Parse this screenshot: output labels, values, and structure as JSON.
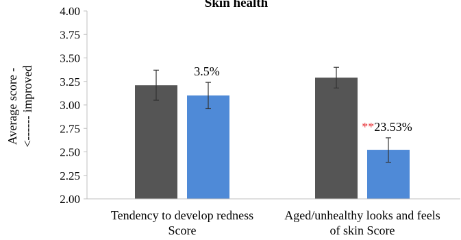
{
  "chart_data": {
    "type": "bar",
    "title": "Skin health",
    "ylabel_lines": [
      "Average score -",
      "<------ improved"
    ],
    "xlabel": "",
    "ylim": [
      2.0,
      4.0
    ],
    "yticks": [
      "2.00",
      "2.25",
      "2.50",
      "2.75",
      "3.00",
      "3.25",
      "3.50",
      "3.75",
      "4.00"
    ],
    "ytick_values": [
      2.0,
      2.25,
      2.5,
      2.75,
      3.0,
      3.25,
      3.5,
      3.75,
      4.0
    ],
    "categories": [
      {
        "lines": [
          "Tendency to develop redness",
          "Score"
        ]
      },
      {
        "lines": [
          "Aged/unhealthy looks and feels",
          "of skin Score"
        ]
      }
    ],
    "series": [
      {
        "color": "#555555",
        "values": [
          3.21,
          3.29
        ],
        "errors": [
          0.16,
          0.11
        ]
      },
      {
        "color": "#4f8ad7",
        "values": [
          3.1,
          2.52
        ],
        "errors": [
          0.14,
          0.13
        ]
      }
    ],
    "annotations": [
      {
        "category": 0,
        "series": 1,
        "stars": "",
        "text": "3.5%"
      },
      {
        "category": 1,
        "series": 1,
        "stars": "**",
        "text": "23.53%"
      }
    ],
    "colors": {
      "stars": "#e8383d",
      "axis": "#bfbfbf",
      "text": "#000000"
    },
    "grid": false,
    "legend": "none"
  }
}
